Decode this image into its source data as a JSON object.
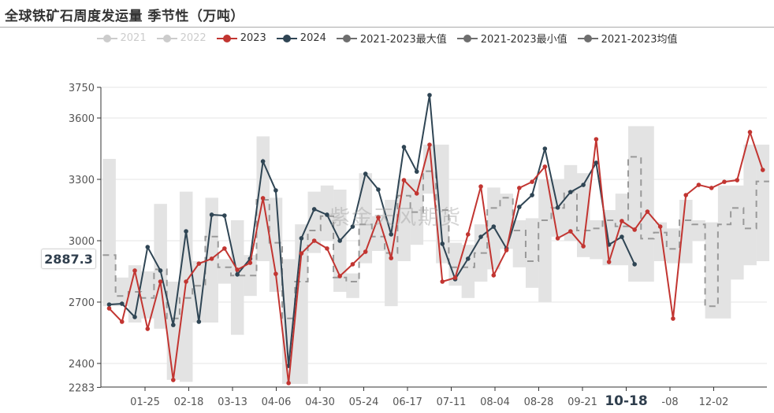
{
  "title": "全球铁矿石周度发运量 季节性（万吨）",
  "watermark": "紫金天风期货",
  "legend": [
    {
      "label": "2021",
      "color": "#cccccc",
      "enabled": false
    },
    {
      "label": "2022",
      "color": "#cccccc",
      "enabled": false
    },
    {
      "label": "2023",
      "color": "#c23531",
      "enabled": true
    },
    {
      "label": "2024",
      "color": "#2f4554",
      "enabled": true
    },
    {
      "label": "2021-2023最大值",
      "color": "#6e6e6e",
      "enabled": true
    },
    {
      "label": "2021-2023最小值",
      "color": "#6e6e6e",
      "enabled": true
    },
    {
      "label": "2021-2023均值",
      "color": "#6e6e6e",
      "enabled": true
    }
  ],
  "axis_pointer": {
    "y_value": "2887.3",
    "x_label": "10-18"
  },
  "chart_data": {
    "type": "line",
    "title": "全球铁矿石周度发运量 季节性（万吨）",
    "xlabel": "",
    "ylabel": "",
    "ylim": [
      2283,
      3750
    ],
    "y_ticks": [
      "3750",
      "3600",
      "3300",
      "3000",
      "2700",
      "2400",
      "2283"
    ],
    "x_ticks": [
      "01-25",
      "02-18",
      "03-13",
      "04-06",
      "04-30",
      "05-24",
      "06-17",
      "07-11",
      "08-04",
      "08-28",
      "09-21",
      "10-18",
      "-08",
      "12-02"
    ],
    "grid": true,
    "legend_position": "top",
    "series": [
      {
        "name": "2023",
        "color": "#c23531",
        "values": [
          2669,
          2604,
          2854,
          2569,
          2800,
          2319,
          2800,
          2888,
          2912,
          2962,
          2858,
          2892,
          3208,
          2838,
          2304,
          2938,
          3000,
          2962,
          2827,
          2885,
          2946,
          3115,
          2915,
          3296,
          3231,
          3469,
          2800,
          2819,
          3031,
          3265,
          2831,
          2954,
          3258,
          3288,
          3362,
          3012,
          3046,
          2973,
          3496,
          2896,
          3096,
          3054,
          3142,
          3069,
          2619,
          3223,
          3273,
          3258,
          3288,
          3296,
          3531,
          3346
        ]
      },
      {
        "name": "2024",
        "color": "#2f4554",
        "values": [
          2688,
          2692,
          2627,
          2969,
          2854,
          2588,
          3046,
          2604,
          3127,
          3123,
          2835,
          2912,
          3388,
          3246,
          2388,
          3012,
          3154,
          3127,
          3000,
          3069,
          3327,
          3250,
          3031,
          3458,
          3338,
          3712,
          2985,
          2812,
          2912,
          3019,
          3069,
          2962,
          3165,
          3223,
          3450,
          3162,
          3238,
          3273,
          3381,
          2981,
          3019,
          2885
        ]
      },
      {
        "name": "2021-2023最大值",
        "color": "#e3e3e3",
        "values": [
          3400,
          2820,
          2880,
          2850,
          3180,
          2800,
          3240,
          2900,
          3210,
          2910,
          3100,
          2930,
          3510,
          3210,
          2910,
          3080,
          3240,
          3270,
          3250,
          2840,
          3330,
          3120,
          3200,
          3300,
          3300,
          3470,
          3470,
          2990,
          2980,
          3080,
          3260,
          3230,
          3100,
          3110,
          3300,
          3300,
          3370,
          3330,
          3100,
          3150,
          3230,
          3560,
          3560,
          3090,
          3060,
          3200,
          3100,
          3090,
          3270,
          3270,
          3470,
          3470
        ]
      },
      {
        "name": "2021-2023最小值",
        "color": "#e3e3e3",
        "values": [
          2680,
          2680,
          2600,
          2620,
          2570,
          2320,
          2310,
          2600,
          2600,
          2790,
          2540,
          2730,
          2900,
          2750,
          2300,
          2300,
          2940,
          3000,
          2750,
          2720,
          2890,
          2950,
          2680,
          2900,
          2980,
          3230,
          2890,
          2780,
          2720,
          2800,
          2860,
          2960,
          2870,
          2770,
          2700,
          3020,
          3000,
          2920,
          2910,
          2880,
          2880,
          2800,
          2800,
          2900,
          2890,
          2890,
          3000,
          2620,
          2620,
          2810,
          2880,
          2900
        ]
      },
      {
        "name": "2021-2023均值",
        "color": "#999999",
        "values": [
          2930,
          2730,
          2750,
          2720,
          2860,
          2620,
          2720,
          2780,
          3020,
          2870,
          2830,
          2830,
          3200,
          2990,
          2620,
          2800,
          3050,
          3120,
          2820,
          2800,
          3080,
          3020,
          2940,
          3220,
          3140,
          3340,
          3150,
          2870,
          2870,
          2940,
          3160,
          3210,
          3050,
          2900,
          3100,
          3160,
          3240,
          3050,
          3060,
          3100,
          3070,
          3410,
          3010,
          3040,
          2960,
          3100,
          3080,
          2680,
          3080,
          3160,
          3060,
          3290
        ]
      }
    ]
  }
}
